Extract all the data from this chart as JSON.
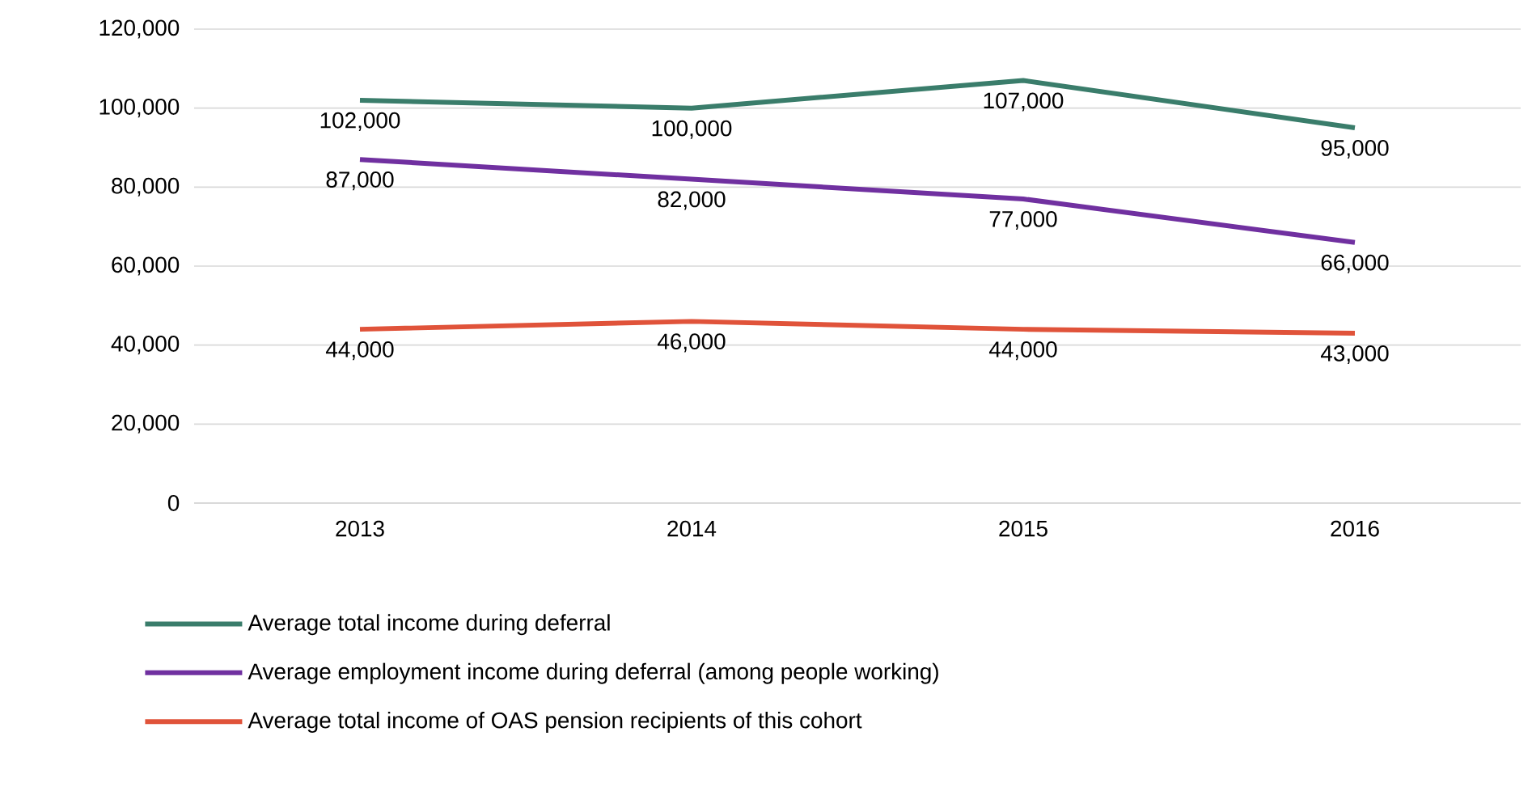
{
  "chart_data": {
    "type": "line",
    "categories": [
      "2013",
      "2014",
      "2015",
      "2016"
    ],
    "series": [
      {
        "name": "Average total income during deferral",
        "color": "#3a7d6b",
        "values": [
          102000,
          100000,
          107000,
          95000
        ],
        "value_labels": [
          "102,000",
          "100,000",
          "107,000",
          "95,000"
        ]
      },
      {
        "name": "Average employment income during deferral (among people working)",
        "color": "#7030a0",
        "values": [
          87000,
          82000,
          77000,
          66000
        ],
        "value_labels": [
          "87,000",
          "82,000",
          "77,000",
          "66,000"
        ]
      },
      {
        "name": "Average total income of OAS pension recipients of this cohort",
        "color": "#e0533a",
        "values": [
          44000,
          46000,
          44000,
          43000
        ],
        "value_labels": [
          "44,000",
          "46,000",
          "44,000",
          "43,000"
        ]
      }
    ],
    "ylim": [
      0,
      120000
    ],
    "yticks": [
      {
        "value": 0,
        "label": "0"
      },
      {
        "value": 20000,
        "label": "20,000"
      },
      {
        "value": 40000,
        "label": "40,000"
      },
      {
        "value": 60000,
        "label": "60,000"
      },
      {
        "value": 80000,
        "label": "80,000"
      },
      {
        "value": 100000,
        "label": "100,000"
      },
      {
        "value": 120000,
        "label": "120,000"
      }
    ],
    "grid": "y",
    "legend": "bottom",
    "marker": "none",
    "line_style": "solid"
  }
}
